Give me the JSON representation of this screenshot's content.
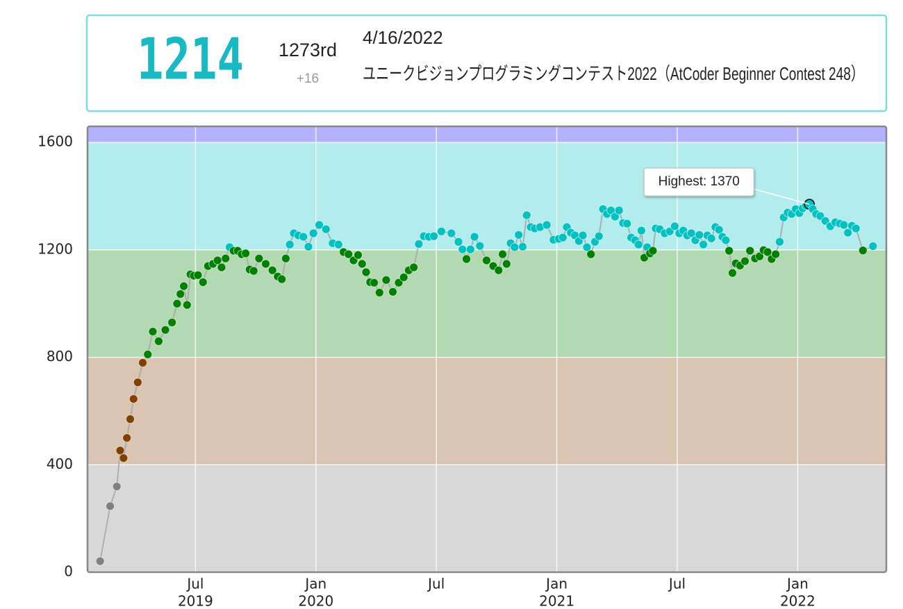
{
  "header": {
    "rating": 1214,
    "rating_color": "#19b9c4",
    "rank": "1273rd",
    "change": "+16",
    "date": "4/16/2022",
    "contest": "ユニークビジョンプログラミングコンテスト2022（AtCoder Beginner Contest 248）"
  },
  "chart_data": {
    "type": "line",
    "x": [
      "2019-02",
      "2019-02",
      "2019-03",
      "2019-03",
      "2019-03",
      "2019-03",
      "2019-03",
      "2019-03",
      "2019-04",
      "2019-04",
      "2019-04",
      "2019-04",
      "2019-05",
      "2019-05",
      "2019-05",
      "2019-06",
      "2019-06",
      "2019-06",
      "2019-06",
      "2019-06",
      "2019-06",
      "2019-07",
      "2019-07",
      "2019-07",
      "2019-07",
      "2019-08",
      "2019-08",
      "2019-08",
      "2019-08",
      "2019-08",
      "2019-09",
      "2019-09",
      "2019-09",
      "2019-09",
      "2019-09",
      "2019-10",
      "2019-10",
      "2019-10",
      "2019-11",
      "2019-11",
      "2019-11",
      "2019-11",
      "2019-11",
      "2019-12",
      "2019-12",
      "2019-12",
      "2019-12",
      "2020-01",
      "2020-01",
      "2020-01",
      "2020-02",
      "2020-02",
      "2020-02",
      "2020-02",
      "2020-03",
      "2020-03",
      "2020-03",
      "2020-03",
      "2020-03",
      "2020-04",
      "2020-04",
      "2020-04",
      "2020-05",
      "2020-05",
      "2020-05",
      "2020-05",
      "2020-06",
      "2020-06",
      "2020-06",
      "2020-06",
      "2020-07",
      "2020-07",
      "2020-08",
      "2020-08",
      "2020-08",
      "2020-08",
      "2020-08",
      "2020-09",
      "2020-09",
      "2020-09",
      "2020-10",
      "2020-10",
      "2020-10",
      "2020-10",
      "2020-10",
      "2020-11",
      "2020-11",
      "2020-11",
      "2020-11",
      "2020-11",
      "2020-12",
      "2020-12",
      "2020-12",
      "2021-01",
      "2021-01",
      "2021-01",
      "2021-01",
      "2021-01",
      "2021-02",
      "2021-02",
      "2021-02",
      "2021-02",
      "2021-02",
      "2021-03",
      "2021-03",
      "2021-03",
      "2021-03",
      "2021-03",
      "2021-04",
      "2021-04",
      "2021-04",
      "2021-04",
      "2021-04",
      "2021-05",
      "2021-05",
      "2021-05",
      "2021-05",
      "2021-05",
      "2021-05",
      "2021-05",
      "2021-06",
      "2021-06",
      "2021-06",
      "2021-06",
      "2021-07",
      "2021-07",
      "2021-07",
      "2021-07",
      "2021-07",
      "2021-08",
      "2021-08",
      "2021-08",
      "2021-08",
      "2021-08",
      "2021-09",
      "2021-09",
      "2021-09",
      "2021-09",
      "2021-09",
      "2021-09",
      "2021-10",
      "2021-10",
      "2021-10",
      "2021-10",
      "2021-11",
      "2021-11",
      "2021-11",
      "2021-11",
      "2021-11",
      "2021-12",
      "2021-12",
      "2021-12",
      "2021-12",
      "2021-12",
      "2022-01",
      "2022-01",
      "2022-01",
      "2022-01",
      "2022-01",
      "2022-01",
      "2022-02",
      "2022-02",
      "2022-02",
      "2022-02",
      "2022-03",
      "2022-03",
      "2022-03",
      "2022-03",
      "2022-03",
      "2022-04",
      "2022-04"
    ],
    "values": [
      41,
      246,
      319,
      453,
      425,
      500,
      570,
      645,
      707,
      780,
      811,
      896,
      860,
      902,
      930,
      1000,
      1036,
      1065,
      995,
      1109,
      1104,
      1106,
      1080,
      1140,
      1148,
      1161,
      1135,
      1168,
      1210,
      1197,
      1197,
      1184,
      1187,
      1127,
      1122,
      1168,
      1148,
      1124,
      1101,
      1091,
      1168,
      1220,
      1262,
      1254,
      1249,
      1212,
      1262,
      1293,
      1277,
      1225,
      1220,
      1192,
      1184,
      1161,
      1181,
      1148,
      1117,
      1080,
      1078,
      1041,
      1088,
      1044,
      1078,
      1098,
      1124,
      1135,
      1222,
      1251,
      1249,
      1251,
      1269,
      1262,
      1230,
      1202,
      1166,
      1202,
      1249,
      1215,
      1161,
      1140,
      1124,
      1184,
      1148,
      1225,
      1210,
      1256,
      1212,
      1329,
      1285,
      1280,
      1285,
      1293,
      1238,
      1241,
      1246,
      1285,
      1264,
      1254,
      1233,
      1254,
      1210,
      1184,
      1230,
      1251,
      1352,
      1334,
      1347,
      1324,
      1347,
      1300,
      1298,
      1246,
      1236,
      1220,
      1272,
      1171,
      1210,
      1187,
      1197,
      1280,
      1277,
      1262,
      1269,
      1288,
      1262,
      1272,
      1254,
      1262,
      1236,
      1256,
      1220,
      1254,
      1243,
      1285,
      1275,
      1249,
      1236,
      1197,
      1114,
      1150,
      1142,
      1158,
      1197,
      1168,
      1176,
      1199,
      1192,
      1166,
      1184,
      1230,
      1321,
      1339,
      1334,
      1352,
      1337,
      1355,
      1365,
      1370,
      1352,
      1334,
      1326,
      1308,
      1288,
      1303,
      1298,
      1293,
      1264,
      1290,
      1280,
      1198,
      1214
    ],
    "annotation": "Highest: 1370",
    "line_color": "#aaaaaa",
    "xlim": [
      "2019-01",
      "2022-05"
    ],
    "xticks": [
      {
        "value": "2019-07",
        "label": [
          "Jul",
          "2019"
        ]
      },
      {
        "value": "2020-01",
        "label": [
          "Jan",
          "2020"
        ]
      },
      {
        "value": "2020-07",
        "label": [
          "Jul"
        ]
      },
      {
        "value": "2021-01",
        "label": [
          "Jan",
          "2021"
        ]
      },
      {
        "value": "2021-07",
        "label": [
          "Jul"
        ]
      },
      {
        "value": "2022-01",
        "label": [
          "Jan",
          "2022"
        ]
      }
    ],
    "ylim": [
      0,
      1660
    ],
    "yticks": [
      0,
      400,
      800,
      1200,
      1600
    ],
    "grid": true,
    "bands": [
      {
        "from": 0,
        "to": 400,
        "fill": "#d8d8d8",
        "point": "#808080"
      },
      {
        "from": 400,
        "to": 800,
        "fill": "#d9c5b2",
        "point": "#804000"
      },
      {
        "from": 800,
        "to": 1200,
        "fill": "#b2d9b2",
        "point": "#008000"
      },
      {
        "from": 1200,
        "to": 1600,
        "fill": "#b2ecec",
        "point": "#00c0c0"
      },
      {
        "from": 1600,
        "to": 2000,
        "fill": "#b2b2ff",
        "point": "#0000ff"
      }
    ]
  }
}
